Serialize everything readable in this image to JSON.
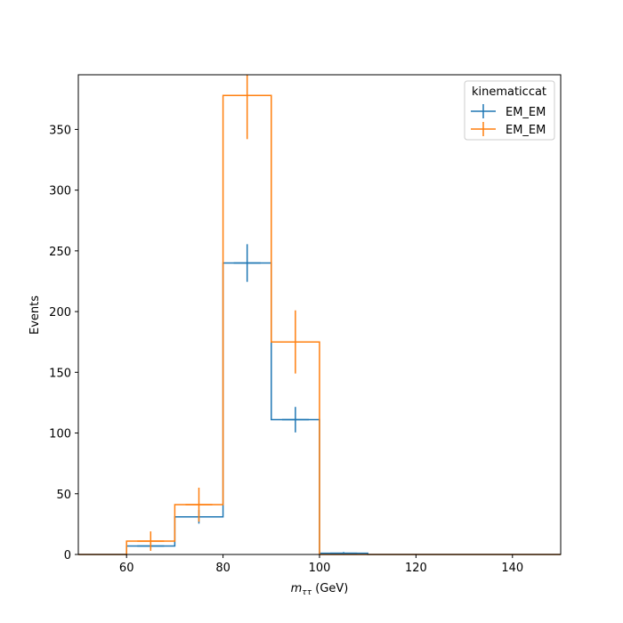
{
  "chart_data": {
    "type": "histogram",
    "xlabel_symbol": "m",
    "xlabel_sub": "ττ",
    "xlabel_unit": " (GeV)",
    "ylabel": "Events",
    "xlim": [
      50,
      150
    ],
    "ylim": [
      0,
      395
    ],
    "xticks": [
      60,
      80,
      100,
      120,
      140
    ],
    "yticks": [
      0,
      50,
      100,
      150,
      200,
      250,
      300,
      350
    ],
    "bin_edges": [
      50,
      60,
      70,
      80,
      90,
      100,
      110,
      120,
      130,
      140,
      150
    ],
    "grid": false,
    "legend": {
      "title": "kinematiccat",
      "placement": "top-right"
    },
    "series": [
      {
        "name": "EM_EM",
        "color": "#1f77b4",
        "values": [
          0,
          7,
          31,
          240,
          111,
          1,
          0,
          0,
          0,
          0
        ],
        "errors": [
          0,
          2.6,
          5.6,
          15.5,
          10.5,
          1,
          0,
          0,
          0,
          0
        ]
      },
      {
        "name": "EM_EM",
        "color": "#ff7f0e",
        "values": [
          0,
          11,
          41,
          378,
          175,
          0,
          0,
          0,
          0,
          0
        ],
        "errors": [
          0,
          8,
          14,
          36,
          26,
          0,
          0,
          0,
          0,
          0
        ]
      }
    ]
  }
}
